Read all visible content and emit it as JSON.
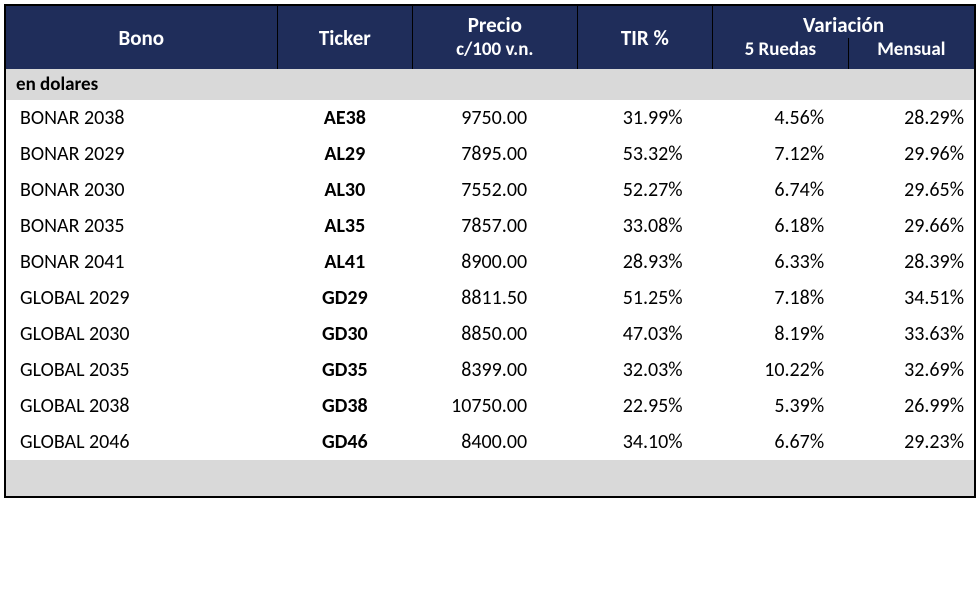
{
  "type": "table",
  "background_color": "#ffffff",
  "header_background": "#1f2d5a",
  "header_text_color": "#ffffff",
  "section_background": "#d9d9d9",
  "border_color": "#000000",
  "header_fontsize": 21,
  "subheader_fontsize": 19,
  "body_fontsize": 20,
  "columns": {
    "bono": {
      "label": "Bono",
      "width_pct": 28,
      "align": "left"
    },
    "ticker": {
      "label": "Ticker",
      "width_pct": 14,
      "align": "center",
      "bold": true
    },
    "precio": {
      "label_top": "Precio",
      "label_bottom": "c/100 v.n.",
      "width_pct": 17,
      "align": "right"
    },
    "tir": {
      "label": "TIR %",
      "width_pct": 14,
      "align": "right"
    },
    "variacion_group": {
      "label": "Variación"
    },
    "var5": {
      "label": "5 Ruedas",
      "width_pct": 14,
      "align": "right"
    },
    "varm": {
      "label": "Mensual",
      "width_pct": 13,
      "align": "right"
    }
  },
  "section_label": "en dolares",
  "rows": [
    {
      "bono": "BONAR 2038",
      "ticker": "AE38",
      "precio": "9750.00",
      "tir": "31.99%",
      "var5": "4.56%",
      "varm": "28.29%"
    },
    {
      "bono": "BONAR 2029",
      "ticker": "AL29",
      "precio": "7895.00",
      "tir": "53.32%",
      "var5": "7.12%",
      "varm": "29.96%"
    },
    {
      "bono": "BONAR 2030",
      "ticker": "AL30",
      "precio": "7552.00",
      "tir": "52.27%",
      "var5": "6.74%",
      "varm": "29.65%"
    },
    {
      "bono": "BONAR 2035",
      "ticker": "AL35",
      "precio": "7857.00",
      "tir": "33.08%",
      "var5": "6.18%",
      "varm": "29.66%"
    },
    {
      "bono": "BONAR 2041",
      "ticker": "AL41",
      "precio": "8900.00",
      "tir": "28.93%",
      "var5": "6.33%",
      "varm": "28.39%"
    },
    {
      "bono": "GLOBAL 2029",
      "ticker": "GD29",
      "precio": "8811.50",
      "tir": "51.25%",
      "var5": "7.18%",
      "varm": "34.51%"
    },
    {
      "bono": "GLOBAL 2030",
      "ticker": "GD30",
      "precio": "8850.00",
      "tir": "47.03%",
      "var5": "8.19%",
      "varm": "33.63%"
    },
    {
      "bono": "GLOBAL 2035",
      "ticker": "GD35",
      "precio": "8399.00",
      "tir": "32.03%",
      "var5": "10.22%",
      "varm": "32.69%"
    },
    {
      "bono": "GLOBAL 2038",
      "ticker": "GD38",
      "precio": "10750.00",
      "tir": "22.95%",
      "var5": "5.39%",
      "varm": "26.99%"
    },
    {
      "bono": "GLOBAL 2046",
      "ticker": "GD46",
      "precio": "8400.00",
      "tir": "34.10%",
      "var5": "6.67%",
      "varm": "29.23%"
    }
  ]
}
